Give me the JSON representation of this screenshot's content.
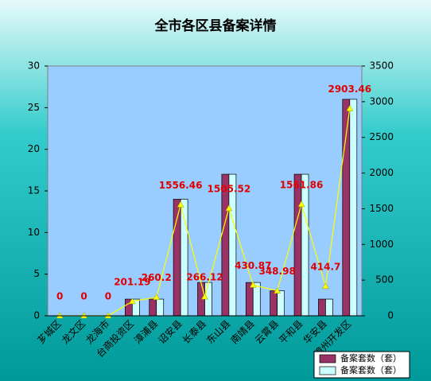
{
  "chart_data": {
    "type": "bar_line",
    "title": "全市各区县备案详情",
    "categories": [
      "芗城区",
      "龙文区",
      "龙海市",
      "台商投资区",
      "漳浦县",
      "诏安县",
      "长泰县",
      "东山县",
      "南靖县",
      "云霄县",
      "平和县",
      "华安县",
      "漳州开发区"
    ],
    "series": [
      {
        "name": "备案套数（套）",
        "color": "#993366",
        "values": [
          0,
          0,
          0,
          2,
          2,
          14,
          4,
          17,
          4,
          3,
          17,
          2,
          26
        ]
      },
      {
        "name": "备案套数（套）",
        "color": "#ccffff",
        "values": [
          0,
          0,
          0,
          2,
          2,
          14,
          4,
          17,
          4,
          3,
          17,
          2,
          26
        ]
      },
      {
        "color": "#ffff00",
        "axis": "y2",
        "values": [
          0,
          0,
          0,
          201.19,
          260.2,
          1556.46,
          266.12,
          1505.52,
          430.87,
          348.98,
          1561.86,
          414.7,
          2903.46
        ]
      }
    ],
    "ylim": [
      0,
      30
    ],
    "yticks": [
      0,
      5,
      10,
      15,
      20,
      25,
      30
    ],
    "y2lim": [
      0,
      3500
    ],
    "y2ticks": [
      0,
      500,
      1000,
      1500,
      2000,
      2500,
      3000,
      3500
    ]
  }
}
